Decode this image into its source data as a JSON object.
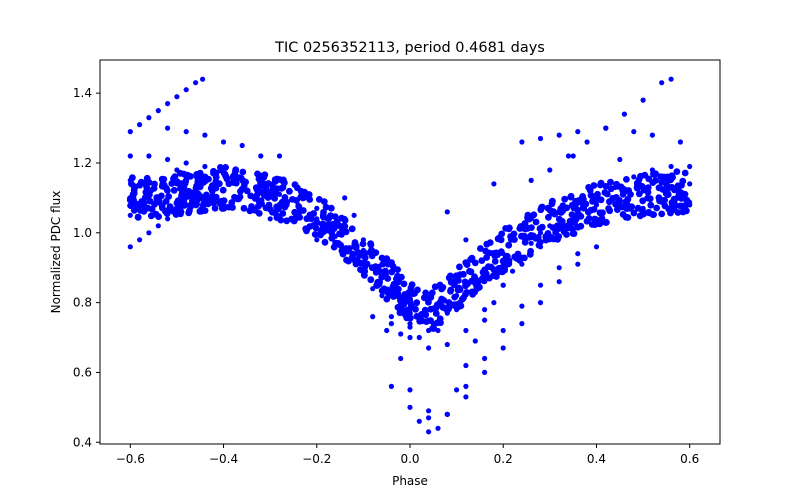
{
  "chart_data": {
    "type": "scatter",
    "title": "TIC 0256352113, period 0.4681 days",
    "xlabel": "Phase",
    "ylabel": "Normalized PDC flux",
    "xlim": [
      -0.665,
      0.665
    ],
    "ylim": [
      0.395,
      1.495
    ],
    "xticks": [
      -0.6,
      -0.4,
      -0.2,
      0.0,
      0.2,
      0.4,
      0.6
    ],
    "xtick_labels": [
      "−0.6",
      "−0.4",
      "−0.2",
      "0.0",
      "0.2",
      "0.4",
      "0.6"
    ],
    "yticks": [
      0.4,
      0.6,
      0.8,
      1.0,
      1.2,
      1.4
    ],
    "ytick_labels": [
      "0.4",
      "0.6",
      "0.8",
      "1.0",
      "1.2",
      "1.4"
    ],
    "grid": false,
    "marker_color": "#0000ff",
    "series": [
      {
        "points": [
          [
            -0.6,
            1.29
          ],
          [
            -0.58,
            1.31
          ],
          [
            -0.56,
            1.33
          ],
          [
            -0.54,
            1.35
          ],
          [
            -0.52,
            1.37
          ],
          [
            -0.5,
            1.39
          ],
          [
            -0.48,
            1.41
          ],
          [
            -0.46,
            1.43
          ],
          [
            -0.445,
            1.44
          ],
          [
            0.26,
            1.15
          ],
          [
            0.3,
            1.18
          ],
          [
            0.34,
            1.22
          ],
          [
            0.38,
            1.26
          ],
          [
            0.42,
            1.3
          ],
          [
            0.46,
            1.34
          ],
          [
            0.5,
            1.38
          ],
          [
            0.54,
            1.43
          ],
          [
            0.56,
            1.44
          ],
          [
            -0.6,
            1.22
          ],
          [
            -0.56,
            1.22
          ],
          [
            -0.52,
            1.21
          ],
          [
            -0.48,
            1.2
          ],
          [
            -0.44,
            1.19
          ],
          [
            -0.4,
            1.17
          ],
          [
            -0.36,
            1.15
          ],
          [
            -0.32,
            1.13
          ],
          [
            -0.28,
            1.11
          ],
          [
            -0.24,
            1.08
          ],
          [
            -0.2,
            1.04
          ],
          [
            -0.16,
            0.99
          ],
          [
            -0.12,
            0.92
          ],
          [
            -0.08,
            0.84
          ],
          [
            -0.04,
            0.76
          ],
          [
            0.0,
            0.7
          ],
          [
            0.04,
            0.67
          ],
          [
            0.08,
            0.68
          ],
          [
            0.12,
            0.72
          ],
          [
            0.16,
            0.78
          ],
          [
            0.2,
            0.85
          ],
          [
            0.24,
            0.91
          ],
          [
            0.28,
            0.96
          ],
          [
            0.32,
            1.01
          ],
          [
            0.36,
            1.05
          ],
          [
            0.4,
            1.09
          ],
          [
            0.44,
            1.13
          ],
          [
            0.48,
            1.16
          ],
          [
            0.52,
            1.18
          ],
          [
            0.56,
            1.19
          ],
          [
            0.6,
            1.19
          ],
          [
            -0.6,
            0.96
          ],
          [
            -0.58,
            0.98
          ],
          [
            -0.56,
            1.0
          ],
          [
            -0.54,
            1.02
          ],
          [
            -0.52,
            1.04
          ],
          [
            -0.5,
            1.06
          ],
          [
            -0.48,
            1.08
          ],
          [
            -0.14,
            1.1
          ],
          [
            -0.12,
            1.05
          ],
          [
            -0.1,
            0.98
          ],
          [
            -0.08,
            0.9
          ],
          [
            -0.06,
            0.82
          ],
          [
            -0.04,
            0.74
          ],
          [
            -0.02,
            0.64
          ],
          [
            0.0,
            0.55
          ],
          [
            0.02,
            0.46
          ],
          [
            0.04,
            0.43
          ],
          [
            0.06,
            0.44
          ],
          [
            0.08,
            0.48
          ],
          [
            0.1,
            0.55
          ],
          [
            0.12,
            0.62
          ],
          [
            0.14,
            0.69
          ],
          [
            0.16,
            0.75
          ],
          [
            0.18,
            0.8
          ],
          [
            0.2,
            0.85
          ],
          [
            0.22,
            0.89
          ],
          [
            0.24,
            0.93
          ],
          [
            0.26,
            0.97
          ],
          [
            0.28,
            1.0
          ],
          [
            -0.04,
            0.56
          ],
          [
            0.0,
            0.5
          ],
          [
            0.04,
            0.47
          ],
          [
            0.08,
            0.48
          ],
          [
            0.12,
            0.56
          ],
          [
            0.16,
            0.64
          ],
          [
            0.2,
            0.72
          ],
          [
            0.24,
            0.79
          ],
          [
            0.28,
            0.85
          ],
          [
            0.32,
            0.9
          ],
          [
            0.36,
            0.94
          ],
          [
            0.04,
            0.49
          ],
          [
            0.08,
            0.48
          ],
          [
            0.12,
            0.53
          ],
          [
            0.16,
            0.6
          ],
          [
            0.2,
            0.67
          ],
          [
            0.24,
            0.74
          ],
          [
            0.28,
            0.8
          ],
          [
            0.32,
            0.86
          ],
          [
            0.36,
            0.91
          ],
          [
            0.4,
            0.96
          ],
          [
            -0.52,
            1.3
          ],
          [
            -0.48,
            1.29
          ],
          [
            -0.44,
            1.28
          ],
          [
            -0.4,
            1.26
          ],
          [
            -0.36,
            1.25
          ],
          [
            -0.32,
            1.22
          ],
          [
            0.24,
            1.26
          ],
          [
            0.28,
            1.27
          ],
          [
            0.32,
            1.28
          ],
          [
            0.36,
            1.29
          ],
          [
            0.42,
            1.3
          ],
          [
            0.48,
            1.29
          ],
          [
            0.52,
            1.28
          ],
          [
            0.58,
            1.26
          ],
          [
            -0.6,
            1.15
          ],
          [
            -0.5,
            1.14
          ],
          [
            -0.4,
            1.17
          ],
          [
            -0.3,
            1.14
          ],
          [
            -0.2,
            1.07
          ],
          [
            -0.1,
            0.95
          ],
          [
            0.0,
            0.78
          ],
          [
            0.04,
            0.75
          ],
          [
            0.1,
            0.82
          ],
          [
            0.2,
            0.94
          ],
          [
            0.3,
            1.02
          ],
          [
            0.4,
            1.08
          ],
          [
            0.5,
            1.12
          ],
          [
            0.6,
            1.14
          ],
          [
            -0.6,
            1.05
          ],
          [
            -0.5,
            1.06
          ],
          [
            -0.4,
            1.07
          ],
          [
            -0.3,
            1.04
          ],
          [
            -0.2,
            0.98
          ],
          [
            -0.1,
            0.88
          ],
          [
            0.0,
            0.74
          ],
          [
            0.04,
            0.72
          ],
          [
            0.1,
            0.78
          ],
          [
            0.2,
            0.9
          ],
          [
            0.3,
            0.98
          ],
          [
            0.4,
            1.04
          ],
          [
            0.5,
            1.07
          ],
          [
            0.6,
            1.08
          ],
          [
            -0.05,
            0.72
          ],
          [
            0.0,
            0.73
          ],
          [
            0.05,
            0.74
          ],
          [
            0.08,
            0.77
          ],
          [
            -0.08,
            0.76
          ],
          [
            -0.02,
            0.71
          ],
          [
            0.02,
            0.7
          ],
          [
            0.06,
            0.72
          ],
          [
            0.08,
            1.06
          ],
          [
            0.12,
            0.98
          ],
          [
            0.18,
            1.14
          ],
          [
            0.35,
            1.22
          ],
          [
            0.45,
            1.21
          ],
          [
            -0.28,
            1.22
          ],
          [
            -0.5,
            1.18
          ]
        ]
      }
    ],
    "dense_band": {
      "x_range": [
        -0.6,
        0.6
      ],
      "y_center": [
        [
          -0.6,
          1.1
        ],
        [
          -0.5,
          1.11
        ],
        [
          -0.4,
          1.13
        ],
        [
          -0.3,
          1.11
        ],
        [
          -0.2,
          1.05
        ],
        [
          -0.1,
          0.94
        ],
        [
          0.0,
          0.8
        ],
        [
          0.04,
          0.77
        ],
        [
          0.1,
          0.84
        ],
        [
          0.2,
          0.95
        ],
        [
          0.3,
          1.03
        ],
        [
          0.4,
          1.08
        ],
        [
          0.5,
          1.11
        ],
        [
          0.6,
          1.12
        ]
      ],
      "y_spread": 0.06
    }
  }
}
